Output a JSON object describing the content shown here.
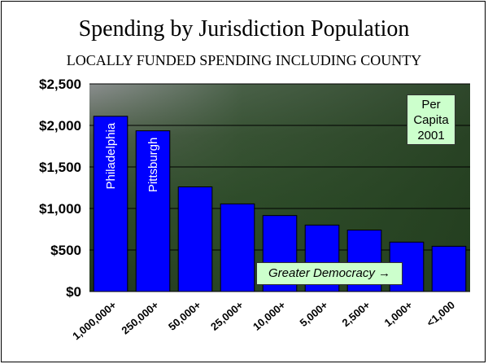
{
  "title": "Spending by Jurisdiction Population",
  "subtitle": "LOCALLY FUNDED SPENDING INCLUDING COUNTY",
  "annotations": {
    "per_capita": [
      "Per",
      "Capita",
      "2001"
    ],
    "greater_democracy": "Greater Democracy →"
  },
  "colors": {
    "bar": "#0000ff",
    "annotation_bg": "#ccffcc"
  },
  "chart_data": {
    "type": "bar",
    "title": "Spending by Jurisdiction Population",
    "subtitle": "LOCALLY FUNDED SPENDING INCLUDING COUNTY",
    "categories": [
      "1,000,000+",
      "250,000+",
      "50,000+",
      "25,000+",
      "10,000+",
      "5,000+",
      "2,500+",
      "1,000+",
      "<1,000"
    ],
    "values": [
      2110,
      1935,
      1260,
      1055,
      915,
      800,
      740,
      595,
      545
    ],
    "bar_labels": [
      "Philadelphia",
      "Pittsburgh",
      "",
      "",
      "",
      "",
      "",
      "",
      ""
    ],
    "yticks": [
      0,
      500,
      1000,
      1500,
      2000,
      2500
    ],
    "ytick_labels": [
      "$0",
      "$500",
      "$1,000",
      "$1,500",
      "$2,000",
      "$2,500"
    ],
    "ylim": [
      0,
      2500
    ],
    "grid": true,
    "xlabel": "",
    "ylabel": ""
  }
}
